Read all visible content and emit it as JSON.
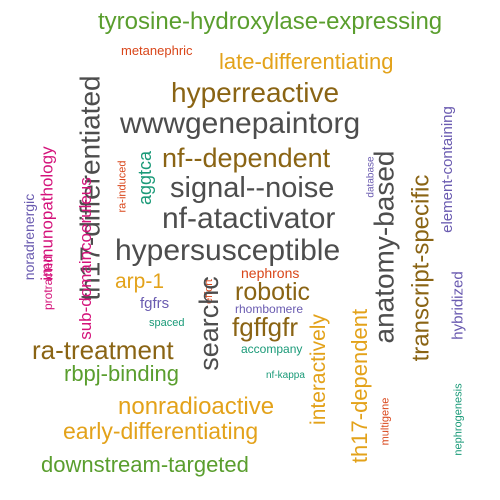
{
  "palette": {
    "green": "#5a9e2e",
    "orange": "#e3a21a",
    "brown": "#8a6414",
    "gray": "#4d4d4d",
    "magenta": "#d4127a",
    "purple": "#6a5bb0",
    "teal": "#1a9a78",
    "red": "#d9461a"
  },
  "words": [
    {
      "text": "tyrosine-hydroxylase-expressing",
      "color": "green"
    },
    {
      "text": "metanephric",
      "color": "red"
    },
    {
      "text": "late-differentiating",
      "color": "orange"
    },
    {
      "text": "hyperreactive",
      "color": "brown"
    },
    {
      "text": "wwwgenepaintorg",
      "color": "gray"
    },
    {
      "text": "nf--dependent",
      "color": "brown"
    },
    {
      "text": "signal--noise",
      "color": "gray"
    },
    {
      "text": "nf-atactivator",
      "color": "gray"
    },
    {
      "text": "hypersusceptible",
      "color": "gray"
    },
    {
      "text": "th17-differentiated",
      "color": "gray"
    },
    {
      "text": "anatomy-based",
      "color": "gray"
    },
    {
      "text": "transcript-specific",
      "color": "brown"
    },
    {
      "text": "element-containing",
      "color": "purple"
    },
    {
      "text": "hybridized",
      "color": "purple"
    },
    {
      "text": "database",
      "color": "purple"
    },
    {
      "text": "aggtca",
      "color": "teal"
    },
    {
      "text": "ra-induced",
      "color": "red"
    },
    {
      "text": "immunopathology",
      "color": "magenta"
    },
    {
      "text": "noradrenergic",
      "color": "purple"
    },
    {
      "text": "protracted",
      "color": "magenta"
    },
    {
      "text": "sub-domaincoeruleus",
      "color": "magenta"
    },
    {
      "text": "arp-1",
      "color": "orange"
    },
    {
      "text": "effort",
      "color": "red"
    },
    {
      "text": "nephrons",
      "color": "red"
    },
    {
      "text": "robotic",
      "color": "brown"
    },
    {
      "text": "fgfrs",
      "color": "purple"
    },
    {
      "text": "rhombomere",
      "color": "purple"
    },
    {
      "text": "fgffgfr",
      "color": "brown"
    },
    {
      "text": "spaced",
      "color": "teal"
    },
    {
      "text": "searchc",
      "color": "gray"
    },
    {
      "text": "interactively",
      "color": "orange"
    },
    {
      "text": "ra-treatment",
      "color": "brown"
    },
    {
      "text": "accompany",
      "color": "teal"
    },
    {
      "text": "rbpj-binding",
      "color": "green"
    },
    {
      "text": "nf-kappa",
      "color": "teal"
    },
    {
      "text": "th17-dependent",
      "color": "orange"
    },
    {
      "text": "nonradioactive",
      "color": "orange"
    },
    {
      "text": "multigene",
      "color": "red"
    },
    {
      "text": "nephrogenesis",
      "color": "teal"
    },
    {
      "text": "early-differentiating",
      "color": "orange"
    },
    {
      "text": "downstream-targeted",
      "color": "green"
    }
  ]
}
